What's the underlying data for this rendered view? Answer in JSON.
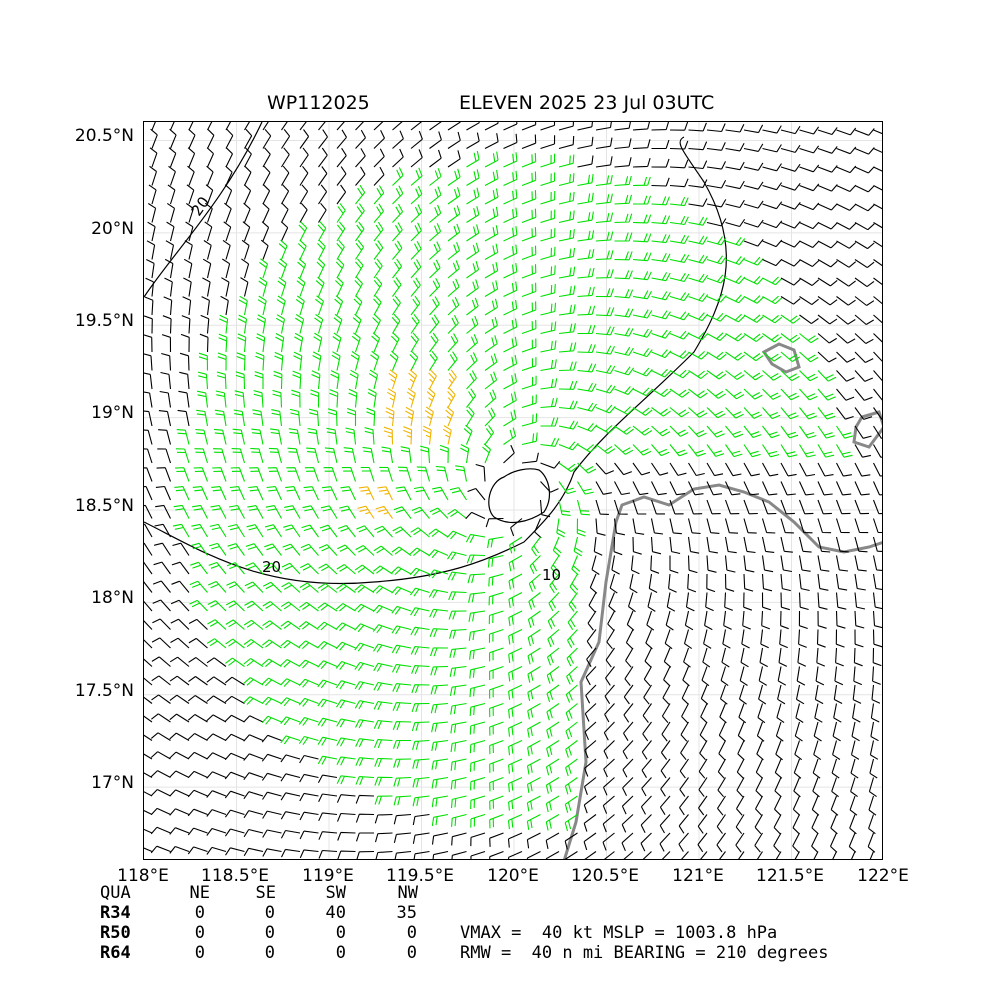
{
  "title": {
    "storm_id": "WP112025",
    "header": "ELEVEN 2025 23 Jul 03UTC"
  },
  "axes": {
    "lat_labels": [
      "20.5°N",
      "20°N",
      "19.5°N",
      "19°N",
      "18.5°N",
      "18°N",
      "17.5°N",
      "17°N"
    ],
    "lon_labels": [
      "118°E",
      "118.5°E",
      "119°E",
      "119.5°E",
      "120°E",
      "120.5°E",
      "121°E",
      "121.5°E",
      "122°E"
    ],
    "lat_range": [
      16.6,
      20.6
    ],
    "lon_range": [
      118.0,
      122.0
    ]
  },
  "map": {
    "storm_center": {
      "lon": 120.0,
      "lat": 18.6
    },
    "isobar_labels": [
      {
        "text": "20",
        "lon": 118.3,
        "lat": 20.1
      },
      {
        "text": "20",
        "lon": 118.68,
        "lat": 18.2
      },
      {
        "text": "10",
        "lon": 120.2,
        "lat": 18.15
      }
    ],
    "barb_colors": {
      "calm": "#000000",
      "gale": "#00e000",
      "storm": "#f0b400"
    },
    "coast_color": "#888888"
  },
  "radii_table": {
    "header": [
      "QUA",
      "NE",
      "SE",
      "SW",
      "NW"
    ],
    "rows": [
      {
        "label": "R34",
        "values": [
          "0",
          "0",
          "40",
          "35"
        ]
      },
      {
        "label": "R50",
        "values": [
          "0",
          "0",
          "0",
          "0"
        ]
      },
      {
        "label": "R64",
        "values": [
          "0",
          "0",
          "0",
          "0"
        ]
      }
    ]
  },
  "summary": {
    "line1": "VMAX =  40 kt MSLP = 1003.8 hPa",
    "line2": "RMW =  40 n mi BEARING = 210 degrees"
  }
}
